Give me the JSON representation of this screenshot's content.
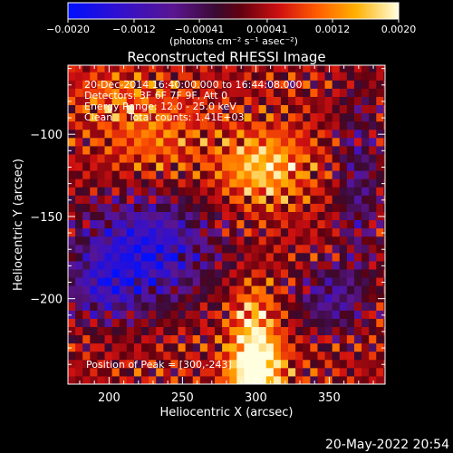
{
  "chart_data": {
    "type": "heatmap",
    "title": "Reconstructed RHESSI Image",
    "xlabel": "Heliocentric X (arcsec)",
    "ylabel": "Heliocentric Y (arcsec)",
    "xlim": [
      172,
      388
    ],
    "ylim": [
      -252,
      -58
    ],
    "x_ticks": [
      200,
      250,
      300,
      350
    ],
    "y_ticks": [
      -100,
      -150,
      -200
    ],
    "colorbar": {
      "min": -0.002,
      "max": 0.002,
      "tick_values": [
        -0.002,
        -0.0012,
        -0.00041,
        0.00041,
        0.0012,
        0.002
      ],
      "tick_labels": [
        "−0.0020",
        "−0.0012",
        "−0.00041",
        "0.00041",
        "0.0012",
        "0.0020"
      ],
      "unit": "(photons cm⁻² s⁻¹ asec⁻²)"
    },
    "info_lines": [
      "20-Dec-2014 16:40:00.000 to 16:44:08.000",
      "Detectors: 3F 6F 7F 9F, Att 0",
      "Energy Range: 12.0 - 25.0 keV",
      "Clean     Total counts: 1.41E+03"
    ],
    "peak_label": "Position of Peak = [300,-243]",
    "peak": [
      300,
      -243
    ]
  },
  "footer": {
    "date": "20-May-2022 20:54"
  }
}
